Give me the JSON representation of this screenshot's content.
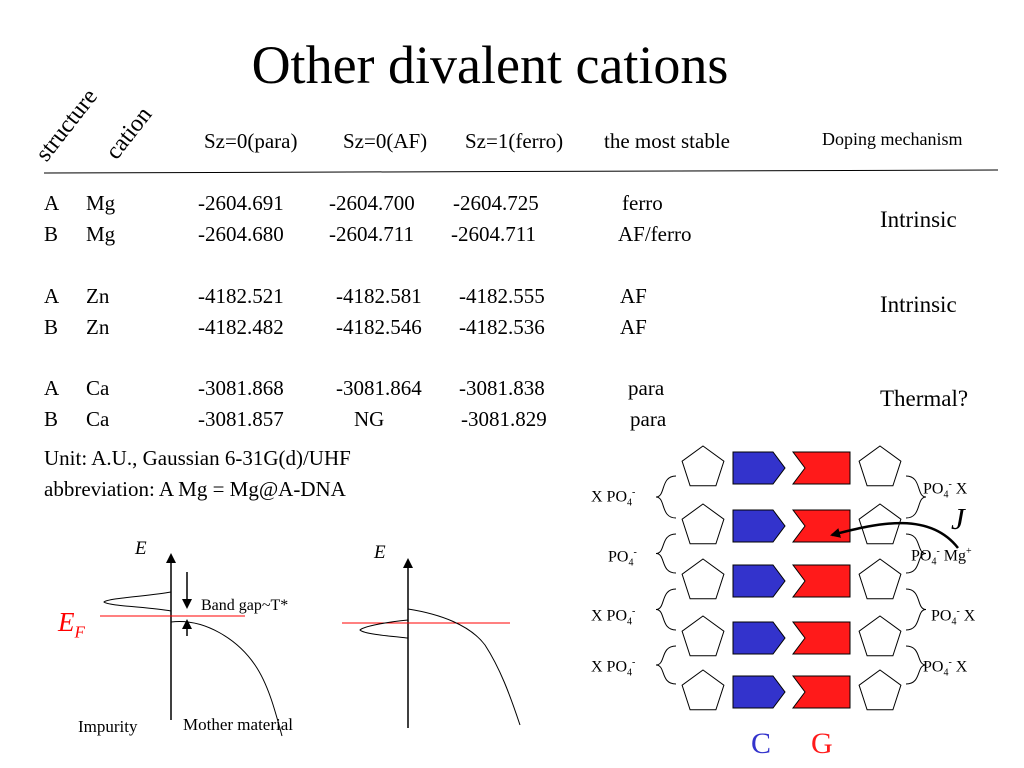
{
  "title": "Other divalent cations",
  "table": {
    "corner_structure": "structure",
    "corner_cation": "cation",
    "columns": [
      "Sz=0(para)",
      "Sz=0(AF)",
      "Sz=1(ferro)",
      "the most stable"
    ],
    "mechanism_header": "Doping mechanism",
    "rows": [
      {
        "structure": "A",
        "cation": "Mg",
        "para": "-2604.691",
        "af": "-2604.700",
        "ferro": "-2604.725",
        "stable": "ferro"
      },
      {
        "structure": "B",
        "cation": "Mg",
        "para": "-2604.680",
        "af": "-2604.711",
        "ferro": "-2604.711",
        "stable": "AF/ferro"
      },
      {
        "structure": "A",
        "cation": "Zn",
        "para": "-4182.521",
        "af": "-4182.581",
        "ferro": "-4182.555",
        "stable": "AF"
      },
      {
        "structure": "B",
        "cation": "Zn",
        "para": "-4182.482",
        "af": "-4182.546",
        "ferro": "-4182.536",
        "stable": "AF"
      },
      {
        "structure": "A",
        "cation": "Ca",
        "para": "-3081.868",
        "af": "-3081.864",
        "ferro": "-3081.838",
        "stable": "para"
      },
      {
        "structure": "B",
        "cation": "Ca",
        "para": "-3081.857",
        "af": "NG",
        "ferro": "-3081.829",
        "stable": "para"
      }
    ],
    "mechanisms": [
      "Intrinsic",
      "Intrinsic",
      "Thermal?"
    ]
  },
  "notes": {
    "unit": "Unit: A.U., Gaussian 6-31G(d)/UHF",
    "abbreviation": "abbreviation: A Mg = Mg@A-DNA"
  },
  "band_diagram": {
    "e_axis_left": "E",
    "e_axis_right": "E",
    "fermi_label": "E",
    "fermi_sub": "F",
    "band_gap": "Band gap~T*",
    "impurity": "Impurity",
    "mother_material": "Mother material"
  },
  "dna_diagram": {
    "left_labels": [
      {
        "prefix": "X PO",
        "sub": "4",
        "sup": "-"
      },
      {
        "prefix": "PO",
        "sub": "4",
        "sup": "-"
      },
      {
        "prefix": "X PO",
        "sub": "4",
        "sup": "-"
      },
      {
        "prefix": "X PO",
        "sub": "4",
        "sup": "-"
      }
    ],
    "right_labels": [
      {
        "prefix": "PO",
        "sub": "4",
        "sup": "-",
        "suffix": " X"
      },
      {
        "prefix": "PO",
        "sub": "4",
        "sup": "-",
        "suffix": " Mg",
        "suffix_sup": "+"
      },
      {
        "prefix": "PO",
        "sub": "4",
        "sup": "-",
        "suffix": " X"
      },
      {
        "prefix": "PO",
        "sub": "4",
        "sup": "-",
        "suffix": " X"
      }
    ],
    "coupling_label": "J",
    "base_left": "C",
    "base_right": "G",
    "colors": {
      "cytosine": "#3333cc",
      "guanine": "#ff1a1a",
      "fermi_line": "#ff0000"
    }
  }
}
